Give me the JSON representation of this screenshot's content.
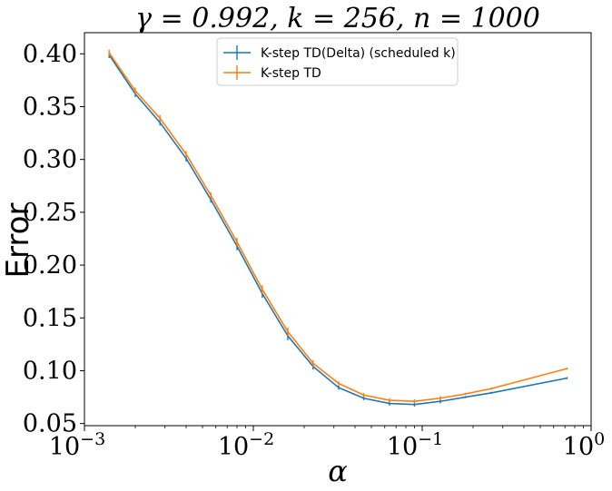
{
  "chart_data": {
    "type": "line",
    "title": "γ = 0.992, k = 256, n = 1000",
    "xlabel": "α",
    "ylabel": "Error",
    "xscale": "log",
    "xlim": [
      0.001,
      1
    ],
    "ylim": [
      0.048,
      0.42
    ],
    "x_tick_labels": [
      "10^−3",
      "10^−2",
      "10^−1",
      "10^0"
    ],
    "y_tick_labels": [
      "0.05",
      "0.10",
      "0.15",
      "0.20",
      "0.25",
      "0.30",
      "0.35",
      "0.40"
    ],
    "legend": "top-center",
    "grid": false,
    "x": [
      0.0014,
      0.002,
      0.0028,
      0.004,
      0.0056,
      0.008,
      0.0113,
      0.016,
      0.0226,
      0.032,
      0.045,
      0.064,
      0.09,
      0.128,
      0.18,
      0.256,
      0.72
    ],
    "series": [
      {
        "name": "K-step TD(Delta) (scheduled k)",
        "color": "#1f77b4",
        "values": [
          0.399,
          0.362,
          0.335,
          0.301,
          0.262,
          0.218,
          0.173,
          0.133,
          0.104,
          0.084,
          0.074,
          0.069,
          0.068,
          0.071,
          0.075,
          0.079,
          0.093
        ],
        "errors": [
          0.003,
          0.003,
          0.003,
          0.003,
          0.003,
          0.004,
          0.004,
          0.004,
          0.003,
          0.002,
          0.002,
          0.002,
          0.002,
          0.002,
          0.001,
          0.001,
          0.001
        ]
      },
      {
        "name": "K-step TD",
        "color": "#ff7f0e",
        "values": [
          0.401,
          0.365,
          0.339,
          0.305,
          0.266,
          0.222,
          0.177,
          0.137,
          0.107,
          0.088,
          0.077,
          0.072,
          0.071,
          0.074,
          0.078,
          0.083,
          0.102
        ],
        "errors": [
          0.003,
          0.003,
          0.003,
          0.003,
          0.003,
          0.004,
          0.004,
          0.004,
          0.003,
          0.002,
          0.002,
          0.002,
          0.002,
          0.002,
          0.001,
          0.001,
          0.001
        ]
      }
    ]
  }
}
